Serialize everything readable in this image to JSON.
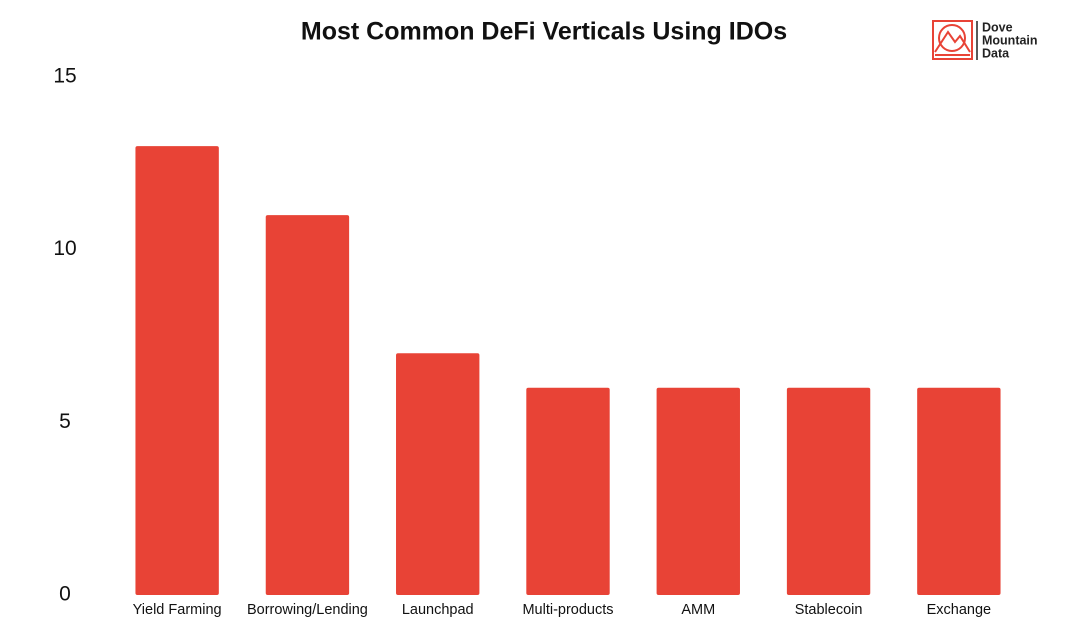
{
  "chart_data": {
    "type": "bar",
    "title": "Most Common DeFi Verticals Using IDOs",
    "categories": [
      "Yield Farming",
      "Borrowing/Lending",
      "Launchpad",
      "Multi-products",
      "AMM",
      "Stablecoin",
      "Exchange"
    ],
    "values": [
      13,
      11,
      7,
      6,
      6,
      6,
      6
    ],
    "color": "#e84336",
    "ylim": [
      0,
      15
    ],
    "yticks": [
      0,
      5,
      10,
      15
    ],
    "grid": false
  },
  "logo": {
    "lines": [
      "Dove",
      "Mountain",
      "Data"
    ]
  }
}
